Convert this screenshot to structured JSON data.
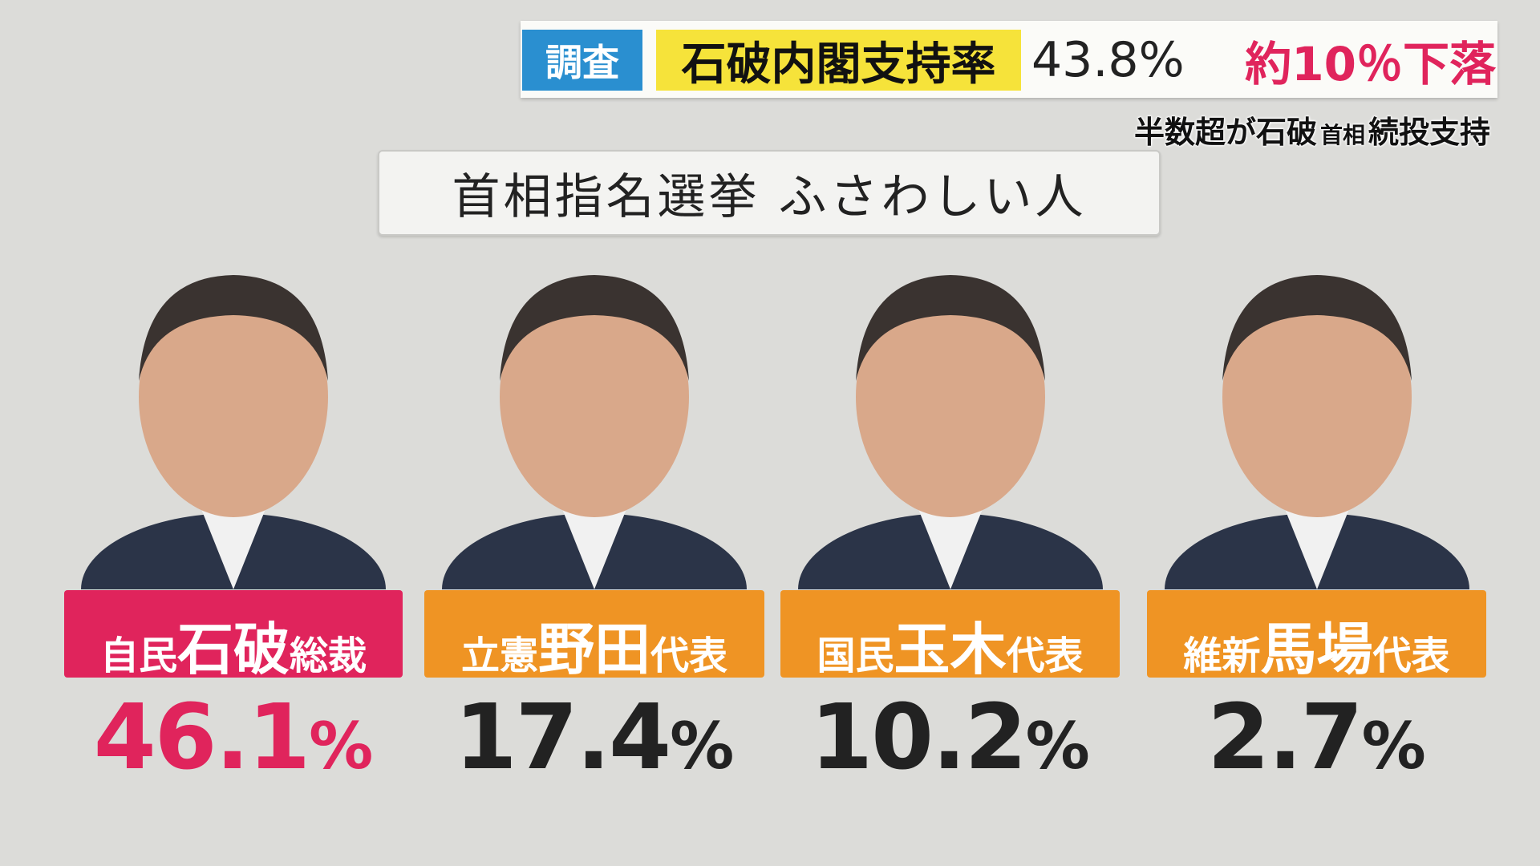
{
  "header": {
    "tag": "調査",
    "headline": "石破内閣支持率",
    "figure": "43.8%",
    "change": "約10％下落",
    "sub": [
      "半数超が石破",
      "首相",
      "続投支持"
    ]
  },
  "title": "首相指名選挙 ふさわしい人",
  "candidates": [
    {
      "party": "自民",
      "name": "石破",
      "role": "総裁",
      "number": "46.1",
      "unit": "%",
      "color": "#e0245c",
      "value_color": "#e0245c"
    },
    {
      "party": "立憲",
      "name": "野田",
      "role": "代表",
      "number": "17.4",
      "unit": "%",
      "color": "#ef9424",
      "value_color": "#222222"
    },
    {
      "party": "国民",
      "name": "玉木",
      "role": "代表",
      "number": "10.2",
      "unit": "%",
      "color": "#ef9424",
      "value_color": "#222222"
    },
    {
      "party": "維新",
      "name": "馬場",
      "role": "代表",
      "number": "2.7",
      "unit": "%",
      "color": "#ef9424",
      "value_color": "#222222"
    }
  ]
}
